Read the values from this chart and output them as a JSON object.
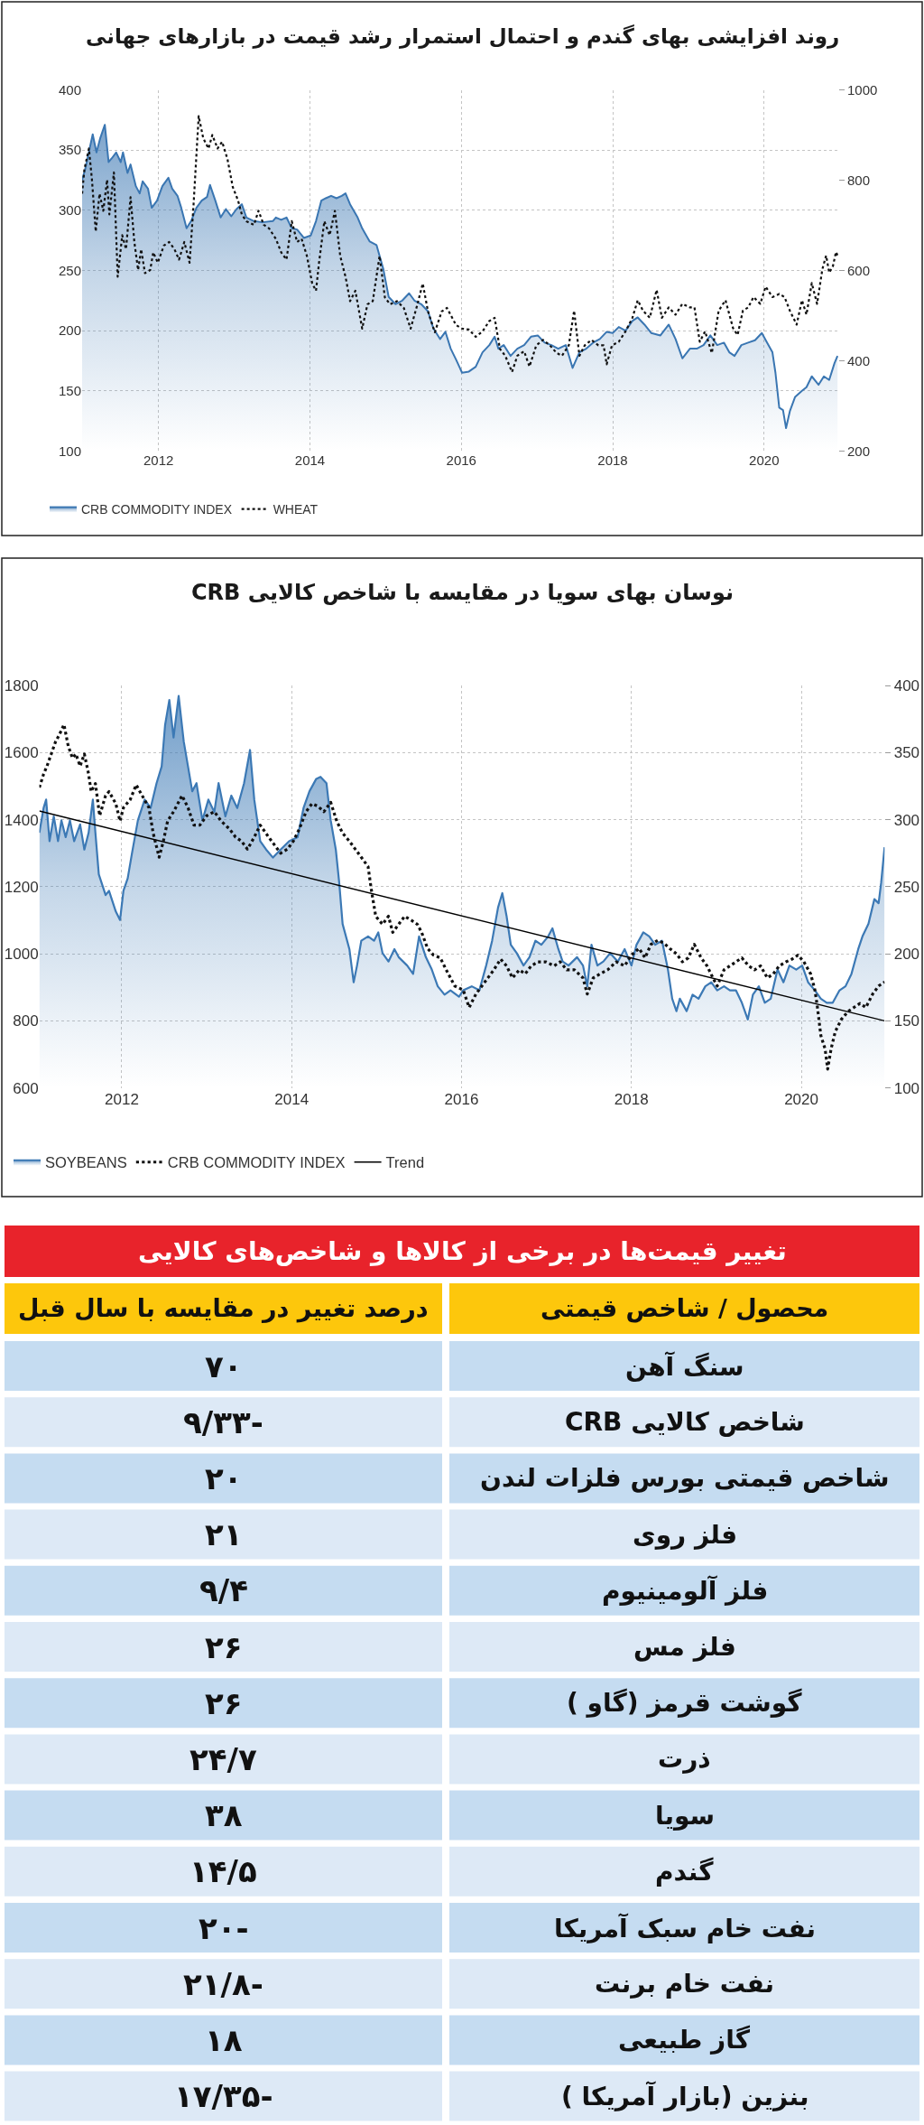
{
  "chart_data": [
    {
      "type": "area",
      "title": "روند افزایشی بهای گندم و احتمال استمرار رشد قیمت در بازارهای جهانی",
      "xlim": [
        2010.99,
        2020.98
      ],
      "xticks": [
        2012,
        2014,
        2016,
        2018,
        2020
      ],
      "ylim": [
        100,
        400
      ],
      "yticks": [
        100,
        150,
        200,
        250,
        300,
        350,
        400
      ],
      "y2lim": [
        200,
        1000
      ],
      "y2ticks": [
        200,
        400,
        600,
        800,
        1000
      ],
      "grid": true,
      "legend": "bottom",
      "series": [
        {
          "name": "CRB COMMODITY INDEX",
          "color": "#3a76b2",
          "x": [
            2010.99,
            2011.03,
            2011.13,
            2011.18,
            2011.23,
            2011.29,
            2011.34,
            2011.38,
            2011.44,
            2011.5,
            2011.53,
            2011.59,
            2011.63,
            2011.7,
            2011.75,
            2011.79,
            2011.86,
            2011.91,
            2011.98,
            2012.05,
            2012.13,
            2012.18,
            2012.25,
            2012.3,
            2012.37,
            2012.43,
            2012.5,
            2012.57,
            2012.64,
            2012.68,
            2012.75,
            2012.82,
            2012.89,
            2012.96,
            2013.03,
            2013.1,
            2013.16,
            2013.26,
            2013.37,
            2013.51,
            2013.55,
            2013.62,
            2013.69,
            2013.76,
            2013.83,
            2013.92,
            2014.01,
            2014.08,
            2014.15,
            2014.21,
            2014.28,
            2014.35,
            2014.42,
            2014.47,
            2014.53,
            2014.63,
            2014.69,
            2014.79,
            2014.88,
            2014.97,
            2015.04,
            2015.13,
            2015.22,
            2015.31,
            2015.38,
            2015.47,
            2015.56,
            2015.63,
            2015.72,
            2015.79,
            2015.86,
            2015.93,
            2016.01,
            2016.1,
            2016.19,
            2016.28,
            2016.37,
            2016.44,
            2016.49,
            2016.56,
            2016.65,
            2016.74,
            2016.83,
            2016.92,
            2017.01,
            2017.1,
            2017.19,
            2017.28,
            2017.38,
            2017.47,
            2017.56,
            2017.65,
            2017.74,
            2017.83,
            2017.92,
            2018.0,
            2018.08,
            2018.17,
            2018.26,
            2018.33,
            2018.42,
            2018.51,
            2018.63,
            2018.74,
            2018.83,
            2018.92,
            2019.02,
            2019.11,
            2019.2,
            2019.29,
            2019.38,
            2019.47,
            2019.54,
            2019.61,
            2019.7,
            2019.79,
            2019.88,
            2019.97,
            2020.04,
            2020.11,
            2020.15,
            2020.2,
            2020.25,
            2020.29,
            2020.34,
            2020.41,
            2020.5,
            2020.56,
            2020.63,
            2020.72,
            2020.79,
            2020.86,
            2020.93,
            2020.97
          ],
          "values": [
            325,
            334,
            363,
            348,
            360,
            371,
            340,
            343,
            348,
            340,
            348,
            331,
            338,
            320,
            314,
            324,
            318,
            302,
            308,
            320,
            327,
            318,
            312,
            302,
            285,
            291,
            302,
            308,
            311,
            321,
            308,
            294,
            301,
            295,
            301,
            305,
            294,
            291,
            290,
            291,
            294,
            292,
            294,
            285,
            284,
            277,
            279,
            291,
            308,
            310,
            312,
            310,
            312,
            314,
            305,
            294,
            285,
            274,
            271,
            251,
            228,
            222,
            225,
            231,
            225,
            222,
            216,
            202,
            193,
            199,
            185,
            176,
            165,
            166,
            170,
            182,
            188,
            195,
            185,
            188,
            179,
            185,
            188,
            195,
            196,
            190,
            188,
            185,
            188,
            169,
            182,
            185,
            190,
            193,
            199,
            198,
            203,
            200,
            208,
            211,
            205,
            198,
            196,
            205,
            193,
            177,
            185,
            185,
            188,
            196,
            188,
            190,
            182,
            179,
            188,
            190,
            192,
            198,
            190,
            182,
            165,
            136,
            134,
            119,
            133,
            145,
            150,
            153,
            162,
            155,
            162,
            159,
            173,
            179
          ]
        },
        {
          "name": "WHEAT",
          "type": "line",
          "axis": "y2",
          "line_style": "dotted",
          "color": "#111111",
          "x": [
            2010.99,
            2011.02,
            2011.08,
            2011.12,
            2011.17,
            2011.22,
            2011.27,
            2011.32,
            2011.35,
            2011.41,
            2011.46,
            2011.52,
            2011.57,
            2011.63,
            2011.68,
            2011.73,
            2011.77,
            2011.82,
            2011.89,
            2011.93,
            2011.99,
            2012.07,
            2012.14,
            2012.21,
            2012.27,
            2012.34,
            2012.41,
            2012.46,
            2012.53,
            2012.59,
            2012.66,
            2012.71,
            2012.78,
            2012.84,
            2012.91,
            2012.98,
            2013.05,
            2013.1,
            2013.16,
            2013.26,
            2013.32,
            2013.39,
            2013.46,
            2013.55,
            2013.62,
            2013.69,
            2013.76,
            2013.83,
            2013.89,
            2013.96,
            2014.03,
            2014.08,
            2014.12,
            2014.19,
            2014.26,
            2014.33,
            2014.4,
            2014.47,
            2014.53,
            2014.6,
            2014.69,
            2014.76,
            2014.83,
            2014.92,
            2014.99,
            2015.06,
            2015.15,
            2015.24,
            2015.33,
            2015.42,
            2015.49,
            2015.56,
            2015.65,
            2015.74,
            2015.81,
            2015.93,
            2016.01,
            2016.1,
            2016.19,
            2016.28,
            2016.37,
            2016.44,
            2016.51,
            2016.58,
            2016.67,
            2016.74,
            2016.83,
            2016.9,
            2016.99,
            2017.08,
            2017.17,
            2017.26,
            2017.33,
            2017.42,
            2017.49,
            2017.56,
            2017.63,
            2017.72,
            2017.81,
            2017.88,
            2017.92,
            2017.99,
            2018.08,
            2018.17,
            2018.26,
            2018.33,
            2018.4,
            2018.49,
            2018.58,
            2018.65,
            2018.74,
            2018.83,
            2018.92,
            2019.02,
            2019.08,
            2019.15,
            2019.22,
            2019.31,
            2019.4,
            2019.49,
            2019.59,
            2019.65,
            2019.72,
            2019.79,
            2019.86,
            2019.95,
            2020.02,
            2020.11,
            2020.2,
            2020.27,
            2020.34,
            2020.43,
            2020.5,
            2020.56,
            2020.63,
            2020.7,
            2020.77,
            2020.82,
            2020.86,
            2020.91,
            2020.95,
            2020.97
          ],
          "values": [
            770,
            824,
            870,
            801,
            686,
            770,
            732,
            801,
            724,
            817,
            586,
            678,
            647,
            762,
            663,
            601,
            647,
            594,
            601,
            640,
            617,
            655,
            663,
            647,
            624,
            663,
            617,
            739,
            942,
            893,
            870,
            900,
            870,
            885,
            847,
            785,
            755,
            724,
            709,
            701,
            732,
            701,
            693,
            670,
            640,
            624,
            709,
            663,
            670,
            632,
            571,
            555,
            617,
            709,
            678,
            732,
            632,
            586,
            532,
            555,
            471,
            525,
            532,
            632,
            540,
            525,
            532,
            517,
            471,
            525,
            571,
            509,
            463,
            509,
            517,
            479,
            471,
            469,
            453,
            465,
            488,
            495,
            426,
            411,
            375,
            411,
            421,
            387,
            434,
            446,
            434,
            417,
            411,
            434,
            511,
            411,
            434,
            446,
            434,
            434,
            392,
            434,
            442,
            465,
            495,
            534,
            511,
            495,
            557,
            495,
            518,
            502,
            526,
            518,
            518,
            442,
            465,
            417,
            511,
            534,
            472,
            457,
            511,
            518,
            541,
            526,
            564,
            541,
            548,
            541,
            511,
            480,
            534,
            502,
            572,
            526,
            603,
            633,
            595,
            610,
            641,
            633
          ]
        }
      ]
    },
    {
      "type": "area",
      "title": "نوسان بهای سویا در مقایسه با شاخص کالایی CRB",
      "xlim": [
        2011.03,
        2020.98
      ],
      "xticks": [
        2012,
        2014,
        2016,
        2018,
        2020
      ],
      "ylim": [
        600,
        1800
      ],
      "yticks": [
        600,
        800,
        1000,
        1200,
        1400,
        1600,
        1800
      ],
      "y2lim": [
        100,
        400
      ],
      "y2ticks": [
        100,
        150,
        200,
        250,
        300,
        350,
        400
      ],
      "grid": true,
      "legend": "bottom",
      "series": [
        {
          "name": "SOYBEANS",
          "color": "#3c79b5",
          "x": [
            2011.03,
            2011.08,
            2011.11,
            2011.15,
            2011.2,
            2011.25,
            2011.29,
            2011.34,
            2011.39,
            2011.44,
            2011.51,
            2011.56,
            2011.61,
            2011.66,
            2011.69,
            2011.73,
            2011.81,
            2011.85,
            2011.93,
            2011.98,
            2012.02,
            2012.07,
            2012.12,
            2012.19,
            2012.27,
            2012.34,
            2012.41,
            2012.47,
            2012.51,
            2012.56,
            2012.61,
            2012.67,
            2012.73,
            2012.78,
            2012.83,
            2012.88,
            2012.95,
            2013.02,
            2013.09,
            2013.14,
            2013.22,
            2013.29,
            2013.36,
            2013.44,
            2013.51,
            2013.56,
            2013.63,
            2013.7,
            2013.78,
            2013.87,
            2013.97,
            2014.07,
            2014.14,
            2014.21,
            2014.29,
            2014.34,
            2014.41,
            2014.46,
            2014.52,
            2014.56,
            2014.6,
            2014.68,
            2014.73,
            2014.77,
            2014.82,
            2014.9,
            2014.97,
            2015.02,
            2015.07,
            2015.14,
            2015.21,
            2015.26,
            2015.36,
            2015.43,
            2015.5,
            2015.58,
            2015.65,
            2015.72,
            2015.8,
            2015.87,
            2015.97,
            2016.02,
            2016.12,
            2016.21,
            2016.29,
            2016.36,
            2016.43,
            2016.48,
            2016.53,
            2016.58,
            2016.65,
            2016.73,
            2016.8,
            2016.87,
            2016.94,
            2017.02,
            2017.07,
            2017.14,
            2017.19,
            2017.26,
            2017.36,
            2017.43,
            2017.48,
            2017.53,
            2017.6,
            2017.67,
            2017.75,
            2017.84,
            2017.92,
            2018.0,
            2018.06,
            2018.14,
            2018.21,
            2018.28,
            2018.36,
            2018.43,
            2018.48,
            2018.53,
            2018.57,
            2018.65,
            2018.72,
            2018.79,
            2018.87,
            2018.94,
            2019.01,
            2019.09,
            2019.16,
            2019.23,
            2019.3,
            2019.37,
            2019.43,
            2019.5,
            2019.57,
            2019.64,
            2019.72,
            2019.79,
            2019.86,
            2019.94,
            2020.01,
            2020.08,
            2020.16,
            2020.23,
            2020.3,
            2020.37,
            2020.45,
            2020.52,
            2020.59,
            2020.67,
            2020.72,
            2020.79,
            2020.86,
            2020.91,
            2020.94,
            2020.98
          ],
          "values": [
            1361,
            1435,
            1460,
            1336,
            1410,
            1336,
            1398,
            1348,
            1398,
            1336,
            1386,
            1311,
            1361,
            1460,
            1361,
            1237,
            1175,
            1188,
            1126,
            1101,
            1188,
            1225,
            1299,
            1398,
            1460,
            1435,
            1509,
            1559,
            1682,
            1757,
            1645,
            1769,
            1633,
            1559,
            1485,
            1509,
            1398,
            1460,
            1423,
            1509,
            1410,
            1472,
            1435,
            1509,
            1608,
            1460,
            1336,
            1311,
            1287,
            1311,
            1336,
            1348,
            1435,
            1485,
            1522,
            1528,
            1509,
            1398,
            1311,
            1212,
            1089,
            1014,
            915,
            965,
            1039,
            1052,
            1039,
            1064,
            1002,
            977,
            1014,
            990,
            965,
            940,
            1052,
            990,
            953,
            903,
            878,
            891,
            872,
            891,
            903,
            891,
            965,
            1039,
            1138,
            1181,
            1113,
            1027,
            1002,
            965,
            990,
            1039,
            1027,
            1052,
            1076,
            1014,
            977,
            965,
            990,
            965,
            903,
            1027,
            965,
            977,
            1002,
            977,
            1014,
            965,
            1027,
            1064,
            1052,
            1027,
            1039,
            953,
            866,
            829,
            866,
            829,
            878,
            866,
            903,
            915,
            891,
            903,
            891,
            891,
            854,
            804,
            878,
            903,
            854,
            866,
            953,
            915,
            965,
            953,
            965,
            915,
            891,
            866,
            854,
            854,
            891,
            903,
            940,
            1014,
            1052,
            1089,
            1163,
            1151,
            1212,
            1318
          ]
        },
        {
          "name": "CRB COMMODITY INDEX",
          "type": "line",
          "axis": "y2",
          "line_style": "dotted",
          "color": "#111111",
          "x": [
            2011.03,
            2011.08,
            2011.12,
            2011.17,
            2011.22,
            2011.27,
            2011.32,
            2011.37,
            2011.42,
            2011.46,
            2011.51,
            2011.56,
            2011.61,
            2011.64,
            2011.69,
            2011.74,
            2011.81,
            2011.85,
            2011.93,
            2011.98,
            2012.02,
            2012.1,
            2012.17,
            2012.24,
            2012.32,
            2012.37,
            2012.44,
            2012.49,
            2012.54,
            2012.61,
            2012.71,
            2012.78,
            2012.85,
            2012.92,
            2013.0,
            2013.09,
            2013.17,
            2013.27,
            2013.34,
            2013.41,
            2013.48,
            2013.56,
            2013.63,
            2013.73,
            2013.8,
            2013.87,
            2013.95,
            2014.02,
            2014.09,
            2014.17,
            2014.24,
            2014.31,
            2014.38,
            2014.46,
            2014.53,
            2014.6,
            2014.68,
            2014.75,
            2014.82,
            2014.9,
            2014.94,
            2014.99,
            2015.07,
            2015.14,
            2015.19,
            2015.26,
            2015.33,
            2015.41,
            2015.48,
            2015.53,
            2015.6,
            2015.67,
            2015.75,
            2015.82,
            2015.92,
            2016.02,
            2016.09,
            2016.17,
            2016.24,
            2016.31,
            2016.38,
            2016.46,
            2016.53,
            2016.6,
            2016.68,
            2016.75,
            2016.82,
            2016.9,
            2016.99,
            2017.09,
            2017.16,
            2017.24,
            2017.33,
            2017.43,
            2017.48,
            2017.55,
            2017.63,
            2017.72,
            2017.82,
            2017.92,
            2018.0,
            2018.09,
            2018.16,
            2018.23,
            2018.31,
            2018.38,
            2018.45,
            2018.53,
            2018.6,
            2018.67,
            2018.74,
            2018.82,
            2018.89,
            2018.96,
            2019.01,
            2019.09,
            2019.16,
            2019.23,
            2019.3,
            2019.38,
            2019.45,
            2019.52,
            2019.6,
            2019.67,
            2019.74,
            2019.82,
            2019.89,
            2019.96,
            2020.03,
            2020.11,
            2020.16,
            2020.19,
            2020.23,
            2020.28,
            2020.31,
            2020.35,
            2020.4,
            2020.47,
            2020.55,
            2020.62,
            2020.69,
            2020.76,
            2020.84,
            2020.91,
            2020.98
          ],
          "values": [
            324,
            334,
            340,
            349,
            358,
            364,
            371,
            355,
            346,
            349,
            340,
            349,
            334,
            321,
            327,
            303,
            318,
            321,
            312,
            299,
            309,
            315,
            326,
            318,
            309,
            290,
            272,
            284,
            299,
            306,
            318,
            309,
            296,
            296,
            303,
            306,
            299,
            293,
            287,
            284,
            278,
            287,
            296,
            287,
            281,
            275,
            278,
            284,
            293,
            306,
            312,
            310,
            306,
            313,
            299,
            290,
            284,
            278,
            272,
            265,
            247,
            228,
            222,
            228,
            216,
            222,
            228,
            225,
            222,
            216,
            204,
            199,
            197,
            188,
            176,
            173,
            160,
            170,
            176,
            182,
            188,
            196,
            191,
            182,
            188,
            185,
            191,
            194,
            194,
            191,
            194,
            188,
            188,
            182,
            170,
            182,
            185,
            188,
            194,
            191,
            199,
            204,
            197,
            207,
            210,
            208,
            204,
            200,
            194,
            197,
            207,
            197,
            191,
            182,
            176,
            188,
            191,
            194,
            197,
            191,
            188,
            191,
            182,
            185,
            191,
            194,
            196,
            199,
            194,
            185,
            173,
            160,
            139,
            129,
            114,
            129,
            142,
            151,
            157,
            160,
            163,
            160,
            170,
            176,
            179
          ]
        },
        {
          "name": "Trend",
          "type": "line",
          "line_style": "solid",
          "color": "#000000",
          "x": [
            2011.03,
            2020.98
          ],
          "values": [
            1426,
            800
          ]
        }
      ]
    },
    {
      "type": "other",
      "title": "تغییر قیمت‌ها در برخی از کالاها و شاخص‌های کالایی",
      "ylabel": "محصول / شاخص قیمتی",
      "xlabel": "درصد تغییر در مقایسه با سال قبل",
      "categories": [
        "سنگ آهن",
        "شاخص کالایی CRB",
        "شاخص قیمتی بورس فلزات لندن",
        "فلز روی",
        "فلز آلومینیوم",
        "فلز مس",
        "گوشت قرمز (گاو )",
        "ذرت",
        "سویا",
        "گندم",
        "نفت خام سبک آمریکا",
        "نفت خام برنت",
        "گاز طبیعی",
        "بنزین (بازار آمریکا )"
      ],
      "value_labels": [
        "۷۰",
        "-۹/۳۳",
        "۲۰",
        "۲۱",
        "۹/۴",
        "۲۶",
        "۲۶",
        "۲۴/۷",
        "۳۸",
        "۱۴/۵",
        "-۲۰",
        "-۲۱/۸",
        "۱۸",
        "-۱۷/۳۵"
      ],
      "colors": [
        "#c5dcf1",
        "#dde9f6",
        "#c5dcf1",
        "#dde9f6",
        "#c5dcf1",
        "#dde9f6",
        "#c5dcf1",
        "#dde9f6",
        "#c5dcf1",
        "#dde9f6",
        "#c5dcf1",
        "#dde9f6",
        "#c5dcf1",
        "#dde9f6"
      ]
    }
  ]
}
